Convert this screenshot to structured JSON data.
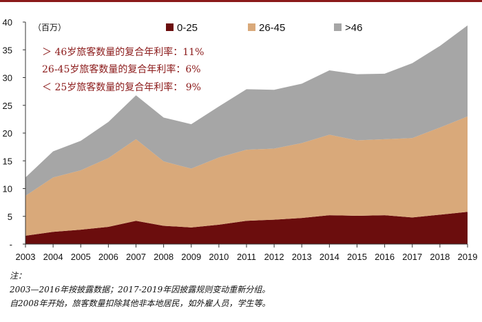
{
  "chart_data": {
    "type": "area",
    "stacked": true,
    "unit_label": "（百万）",
    "x": [
      "2003",
      "2004",
      "2005",
      "2006",
      "2007",
      "2008",
      "2009",
      "2010",
      "2011",
      "2012",
      "2013",
      "2014",
      "2015",
      "2016",
      "2017",
      "2018",
      "2019"
    ],
    "y_ticks": [
      "-",
      "5",
      "10",
      "15",
      "20",
      "25",
      "30",
      "35",
      "40"
    ],
    "ylim": [
      0,
      40
    ],
    "series": [
      {
        "name": "0-25",
        "color": "#6b0d0d",
        "values": [
          1.5,
          2.2,
          2.6,
          3.1,
          4.2,
          3.3,
          3.0,
          3.5,
          4.2,
          4.4,
          4.7,
          5.2,
          5.1,
          5.2,
          4.8,
          5.3,
          5.8
        ]
      },
      {
        "name": "26-45",
        "color": "#d9a97a",
        "values": [
          7.2,
          9.8,
          10.7,
          12.4,
          14.7,
          11.6,
          10.6,
          12.1,
          12.8,
          12.8,
          13.5,
          14.5,
          13.6,
          13.7,
          14.3,
          15.7,
          17.2
        ]
      },
      {
        "name": ">46",
        "color": "#a6a6a6",
        "values": [
          3.3,
          4.7,
          5.3,
          6.5,
          7.9,
          7.9,
          8.0,
          9.2,
          10.9,
          10.6,
          10.7,
          11.6,
          11.9,
          11.8,
          13.5,
          14.7,
          16.4
        ]
      }
    ],
    "annotations": [
      "＞ 46岁旅客数量的复合年利率：11%",
      "26-45岁旅客数量的复合年利率：6%",
      "＜ 25岁旅客数量的复合年利率： 9%"
    ],
    "legend_placement": "top",
    "grid": false
  },
  "notes": [
    "注：",
    "2003—2016年按披露数据；2017-2019年因披露规则变动重新分组。",
    "自2008年开始，旅客数量扣除其他非本地居民，如外雇人员，学生等。"
  ]
}
